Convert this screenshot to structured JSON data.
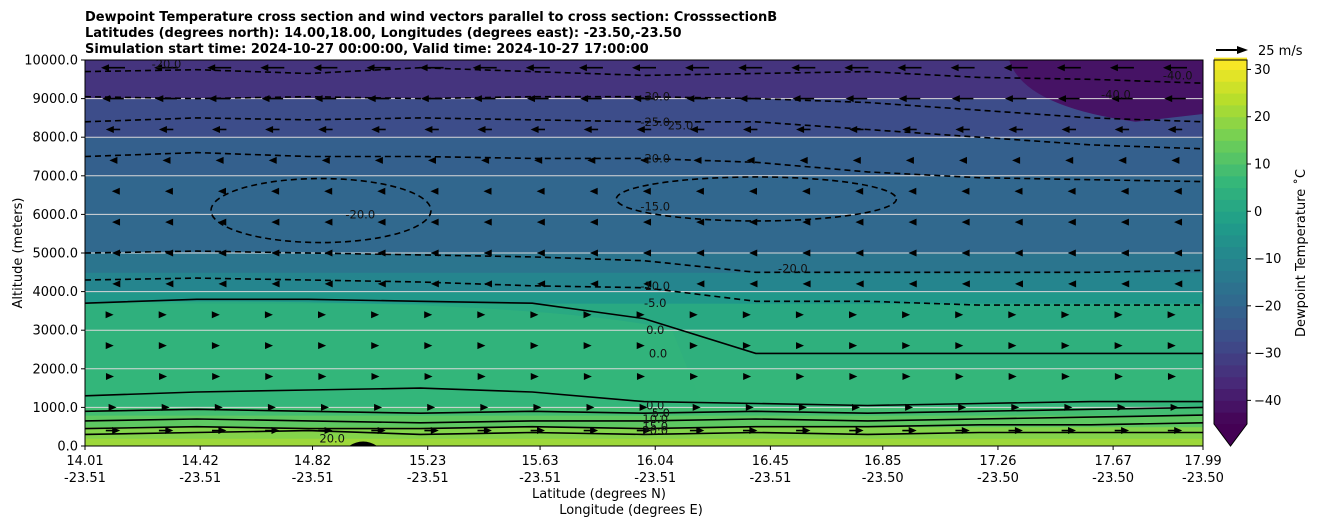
{
  "chart_data": {
    "type": "heatmap",
    "title_lines": [
      "Dewpoint Temperature cross section and wind vectors parallel to cross section: CrosssectionB",
      "Latitudes (degrees north): 14.00,18.00, Longitudes (degrees east): -23.50,-23.50",
      "Simulation start time: 2024-10-27 00:00:00, Valid time: 2024-10-27 17:00:00"
    ],
    "ylabel": "Altitude (meters)",
    "xlabel_line1": "Latitude (degrees N)",
    "xlabel_line2": "Longitude (degrees E)",
    "ylim": [
      0,
      10000
    ],
    "y_ticks": [
      "0.0",
      "1000.0",
      "2000.0",
      "3000.0",
      "4000.0",
      "5000.0",
      "6000.0",
      "7000.0",
      "8000.0",
      "9000.0",
      "10000.0"
    ],
    "x_ticks": [
      {
        "lat": "14.01",
        "lon": "-23.51"
      },
      {
        "lat": "14.42",
        "lon": "-23.51"
      },
      {
        "lat": "14.82",
        "lon": "-23.51"
      },
      {
        "lat": "15.23",
        "lon": "-23.51"
      },
      {
        "lat": "15.63",
        "lon": "-23.51"
      },
      {
        "lat": "16.04",
        "lon": "-23.51"
      },
      {
        "lat": "16.45",
        "lon": "-23.51"
      },
      {
        "lat": "16.85",
        "lon": "-23.50"
      },
      {
        "lat": "17.26",
        "lon": "-23.50"
      },
      {
        "lat": "17.67",
        "lon": "-23.50"
      },
      {
        "lat": "17.99",
        "lon": "-23.50"
      }
    ],
    "x_range": [
      14.01,
      17.99
    ],
    "horizontal_grid": true,
    "colorbar": {
      "label": "Dewpoint Temperature ˚C",
      "range": [
        -45,
        32
      ],
      "ticks": [
        "30",
        "20",
        "10",
        "0",
        "−10",
        "−20",
        "−30",
        "−40"
      ],
      "colormap": "viridis",
      "extend": "min"
    },
    "quiver_key": {
      "label": "25 m/s",
      "speed": 25
    },
    "dewpoint_levels_by_altitude": [
      {
        "altitude": 0,
        "dewpoint": 21
      },
      {
        "altitude": 200,
        "dewpoint": 20
      },
      {
        "altitude": 500,
        "dewpoint": 15
      },
      {
        "altitude": 800,
        "dewpoint": 10
      },
      {
        "altitude": 1000,
        "dewpoint": 7
      },
      {
        "altitude": 2000,
        "dewpoint": 5
      },
      {
        "altitude": 3000,
        "dewpoint": 3
      },
      {
        "altitude": 3700,
        "dewpoint": 0
      },
      {
        "altitude": 4000,
        "dewpoint": -8
      },
      {
        "altitude": 4500,
        "dewpoint": -12
      },
      {
        "altitude": 5000,
        "dewpoint": -18
      },
      {
        "altitude": 6000,
        "dewpoint": -20
      },
      {
        "altitude": 7000,
        "dewpoint": -19
      },
      {
        "altitude": 8000,
        "dewpoint": -24
      },
      {
        "altitude": 9000,
        "dewpoint": -30
      },
      {
        "altitude": 10000,
        "dewpoint": -37
      }
    ],
    "contour_labels": [
      {
        "text": "-30.0",
        "lat": 16.04,
        "altitude": 9050
      },
      {
        "text": "-25.0",
        "lat": 16.04,
        "altitude": 8400
      },
      {
        "text": "25.0",
        "lat": 16.13,
        "altitude": 8300
      },
      {
        "text": "-20.0",
        "lat": 16.04,
        "altitude": 7450
      },
      {
        "text": "-15.0",
        "lat": 16.04,
        "altitude": 6200
      },
      {
        "text": "-20.0",
        "lat": 14.99,
        "altitude": 6000
      },
      {
        "text": "-20.0",
        "lat": 16.53,
        "altitude": 4600
      },
      {
        "text": "-10.0",
        "lat": 16.04,
        "altitude": 4150
      },
      {
        "text": "-5.0",
        "lat": 16.04,
        "altitude": 3700
      },
      {
        "text": "0.0",
        "lat": 16.04,
        "altitude": 3000
      },
      {
        "text": "0.0",
        "lat": 16.05,
        "altitude": 2400
      },
      {
        "text": "0.0",
        "lat": 16.04,
        "altitude": 1050
      },
      {
        "text": "5.0",
        "lat": 16.06,
        "altitude": 850
      },
      {
        "text": "10.0",
        "lat": 16.04,
        "altitude": 700
      },
      {
        "text": "15.0",
        "lat": 16.04,
        "altitude": 500
      },
      {
        "text": "20.0",
        "lat": 16.04,
        "altitude": 400
      },
      {
        "text": "20.0",
        "lat": 14.89,
        "altitude": 200
      },
      {
        "text": "-40.0",
        "lat": 17.68,
        "altitude": 9100
      },
      {
        "text": "-40.0",
        "lat": 17.9,
        "altitude": 9600
      },
      {
        "text": "-20.0",
        "lat": 14.3,
        "altitude": 9900
      }
    ]
  }
}
